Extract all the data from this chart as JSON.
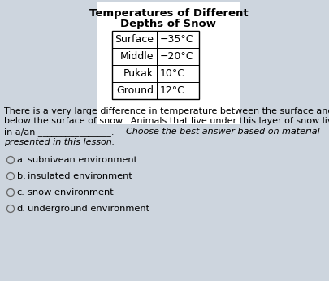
{
  "title_line1": "Temperatures of Different",
  "title_line2": "Depths of Snow",
  "table_rows": [
    [
      "Surface",
      "−35°C"
    ],
    [
      "Middle",
      "−20°C"
    ],
    [
      "Pukak",
      "10°C"
    ],
    [
      "Ground",
      "12°C"
    ]
  ],
  "para_normal1": "There is a very large difference in temperature between the surface and",
  "para_normal2": "below the surface of snow.  Animals that live under this layer of snow live",
  "para_mixed_normal": "in a/an ________________. ",
  "para_mixed_italic": "Choose the best answer based on material",
  "para_italic_last": "presented in this lesson.",
  "choices": [
    [
      "a.",
      "subnivean environment"
    ],
    [
      "b.",
      "insulated environment"
    ],
    [
      "c.",
      "snow environment"
    ],
    [
      "d.",
      "underground environment"
    ]
  ],
  "bg_color": "#cdd5de",
  "title_fontsize": 9.5,
  "body_fontsize": 8.0,
  "choice_fontsize": 8.2,
  "table_fontsize": 9.0
}
